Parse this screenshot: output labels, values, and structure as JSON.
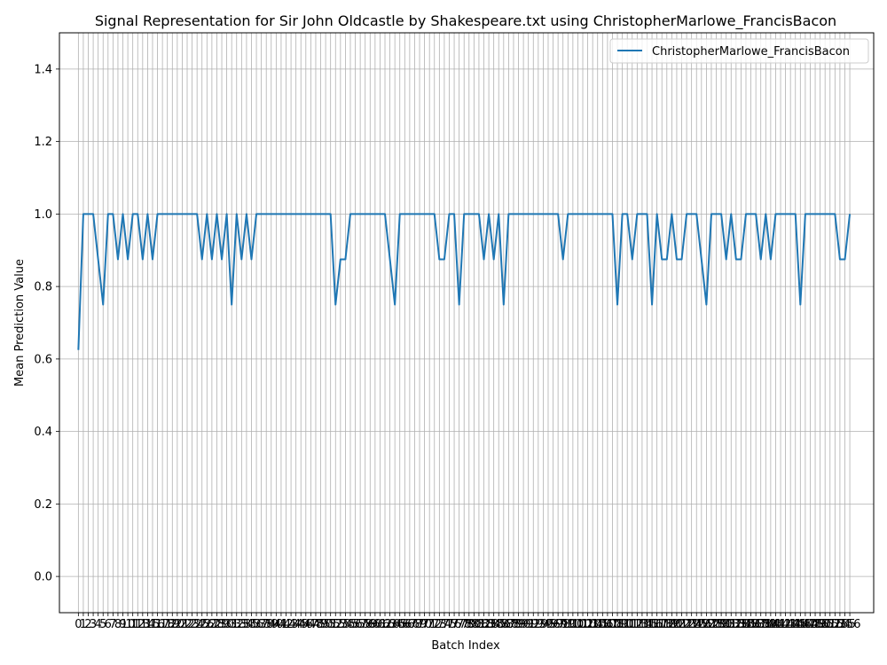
{
  "chart_data": {
    "type": "line",
    "title": "Signal Representation for Sir John Oldcastle by Shakespeare.txt using ChristopherMarlowe_FrancisBacon",
    "xlabel": "Batch Index",
    "ylabel": "Mean Prediction Value",
    "xlim": [
      -3.83,
      160.83
    ],
    "ylim": [
      -0.1,
      1.5
    ],
    "yticks": [
      0.0,
      0.2,
      0.4,
      0.6,
      0.8,
      1.0,
      1.2,
      1.4
    ],
    "grid": true,
    "legend_position": "upper right",
    "color": "#1f77b4",
    "series": [
      {
        "name": "ChristopherMarlowe_FrancisBacon",
        "values": [
          0.625,
          1,
          1,
          1,
          0.875,
          0.75,
          1,
          1,
          0.875,
          1,
          0.875,
          1,
          1,
          0.875,
          1,
          0.875,
          1,
          1,
          1,
          1,
          1,
          1,
          1,
          1,
          1,
          0.875,
          1,
          0.875,
          1,
          0.875,
          1,
          0.75,
          1,
          0.875,
          1,
          0.875,
          1,
          1,
          1,
          1,
          1,
          1,
          1,
          1,
          1,
          1,
          1,
          1,
          1,
          1,
          1,
          1,
          0.75,
          0.875,
          0.875,
          1,
          1,
          1,
          1,
          1,
          1,
          1,
          1,
          0.875,
          0.75,
          1,
          1,
          1,
          1,
          1,
          1,
          1,
          1,
          0.875,
          0.875,
          1,
          1,
          0.75,
          1,
          1,
          1,
          1,
          0.875,
          1,
          0.875,
          1,
          0.75,
          1,
          1,
          1,
          1,
          1,
          1,
          1,
          1,
          1,
          1,
          1,
          0.875,
          1,
          1,
          1,
          1,
          1,
          1,
          1,
          1,
          1,
          1,
          0.75,
          1,
          1,
          0.875,
          1,
          1,
          1,
          0.75,
          1,
          0.875,
          0.875,
          1,
          0.875,
          0.875,
          1,
          1,
          1,
          0.875,
          0.75,
          1,
          1,
          1,
          0.875,
          1,
          0.875,
          0.875,
          1,
          1,
          1,
          0.875,
          1,
          0.875,
          1,
          1,
          1,
          1,
          1,
          0.75,
          1,
          1,
          1,
          1,
          1,
          1,
          1,
          0.875,
          0.875,
          1
        ]
      }
    ]
  }
}
